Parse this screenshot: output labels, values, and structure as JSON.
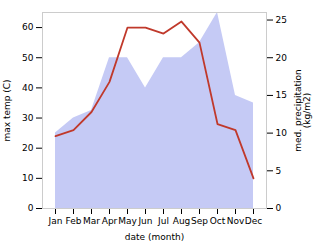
{
  "chart_data": {
    "type": "line",
    "categories": [
      "Jan",
      "Feb",
      "Mar",
      "Apr",
      "May",
      "Jun",
      "Jul",
      "Aug",
      "Sep",
      "Oct",
      "Nov",
      "Dec"
    ],
    "series": [
      {
        "type": "area",
        "axis": "y2",
        "color": "#c5caf5",
        "values": [
          10,
          12,
          13,
          20,
          20,
          16,
          20,
          20,
          22,
          26,
          15,
          14
        ]
      },
      {
        "type": "line",
        "color": "#c0392b",
        "values": [
          24,
          26,
          32,
          42,
          60,
          60,
          58,
          62,
          55,
          28,
          26,
          10
        ]
      }
    ],
    "xlabel": "date (month)",
    "ylabel": "max temp (C)",
    "y2label": "med. precipitation\n(kg/m2)",
    "ylim": [
      0,
      65
    ],
    "yticks": [
      0,
      10,
      20,
      30,
      40,
      50,
      60
    ],
    "y2lim": [
      0,
      26
    ],
    "y2ticks": [
      0,
      5,
      10,
      15,
      20,
      25
    ],
    "grid": false
  }
}
